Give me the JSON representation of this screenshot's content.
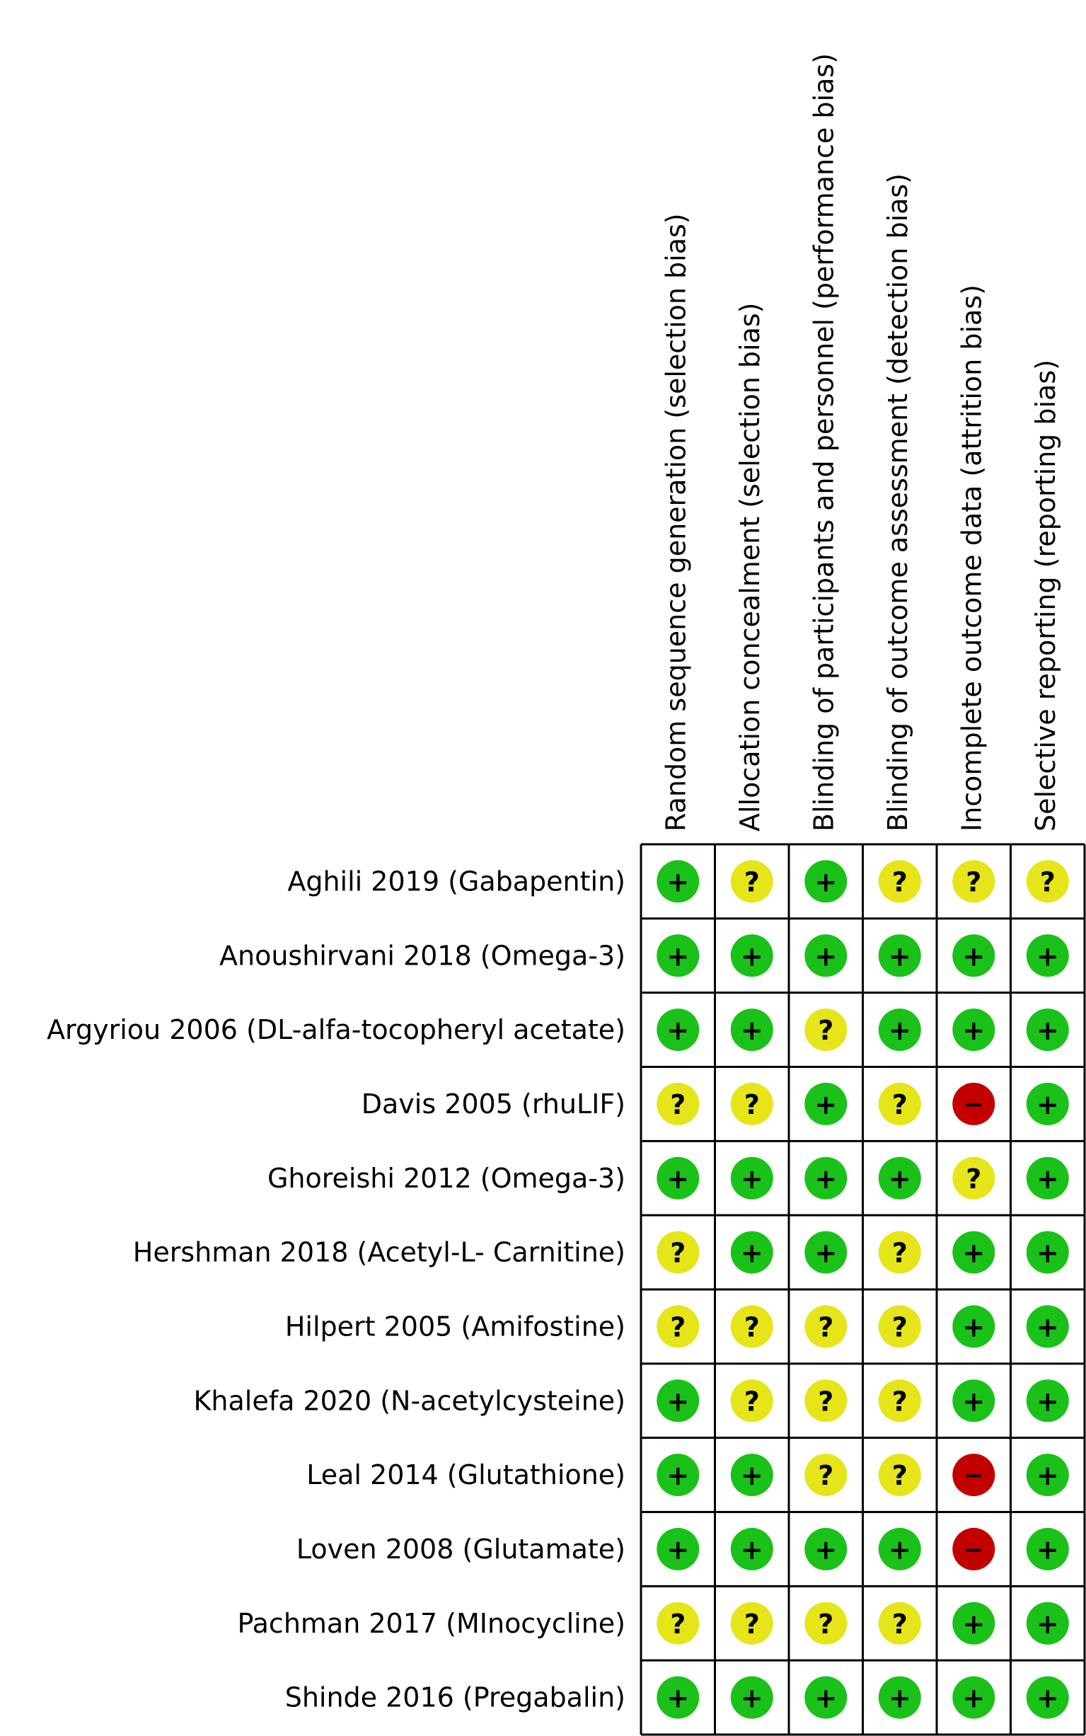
{
  "chart_data": {
    "type": "table",
    "domains": [
      "Random sequence generation (selection bias)",
      "Allocation concealment (selection bias)",
      "Blinding of participants and personnel (performance bias)",
      "Blinding of outcome assessment (detection bias)",
      "Incomplete outcome data (attrition bias)",
      "Selective reporting (reporting bias)"
    ],
    "studies": [
      "Aghili 2019 (Gabapentin)",
      "Anoushirvani 2018 (Omega-3)",
      "Argyriou 2006 (DL-alfa-tocopheryl acetate)",
      "Davis 2005 (rhuLIF)",
      "Ghoreishi 2012 (Omega-3)",
      "Hershman 2018 (Acetyl-L- Carnitine)",
      "Hilpert 2005 (Amifostine)",
      "Khalefa 2020 (N-acetylcysteine)",
      "Leal 2014 (Glutathione)",
      "Loven 2008 (Glutamate)",
      "Pachman 2017 (MInocycline)",
      "Shinde 2016 (Pregabalin)"
    ],
    "judgements": [
      [
        "+",
        "?",
        "+",
        "?",
        "?",
        "?"
      ],
      [
        "+",
        "+",
        "+",
        "+",
        "+",
        "+"
      ],
      [
        "+",
        "+",
        "?",
        "+",
        "+",
        "+"
      ],
      [
        "?",
        "?",
        "+",
        "?",
        "-",
        "+"
      ],
      [
        "+",
        "+",
        "+",
        "+",
        "?",
        "+"
      ],
      [
        "?",
        "+",
        "+",
        "?",
        "+",
        "+"
      ],
      [
        "?",
        "?",
        "?",
        "?",
        "+",
        "+"
      ],
      [
        "+",
        "?",
        "?",
        "?",
        "+",
        "+"
      ],
      [
        "+",
        "+",
        "?",
        "?",
        "-",
        "+"
      ],
      [
        "+",
        "+",
        "+",
        "+",
        "-",
        "+"
      ],
      [
        "?",
        "?",
        "?",
        "?",
        "+",
        "+"
      ],
      [
        "+",
        "+",
        "+",
        "+",
        "+",
        "+"
      ]
    ],
    "symbols": {
      "+": "+",
      "?": "?",
      "-": "−"
    },
    "colors": {
      "+": "#19c119",
      "?": "#e5e51a",
      "-": "#c20000"
    }
  }
}
